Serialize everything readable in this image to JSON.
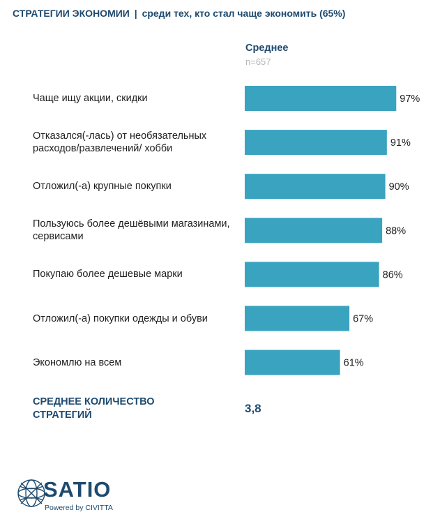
{
  "header": {
    "title": "СТРАТЕГИИ ЭКОНОМИИ",
    "separator": "|",
    "subtitle": "среди тех, кто стал чаще экономить (65%)"
  },
  "column": {
    "name": "Среднее",
    "n": "n=657"
  },
  "chart_data": {
    "type": "bar",
    "orientation": "horizontal",
    "categories": [
      "Чаще ищу акции, скидки",
      "Отказался(-лась) от необязательных расходов/развлечений/ хобби",
      "Отложил(-а) крупные покупки",
      "Пользуюсь более дешёвыми магазинами, сервисами",
      "Покупаю более дешевые марки",
      "Отложил(-а) покупки одежды и обуви",
      "Экономлю на всем"
    ],
    "values": [
      97,
      91,
      90,
      88,
      86,
      67,
      61
    ],
    "value_labels": [
      "97%",
      "91%",
      "90%",
      "88%",
      "86%",
      "67%",
      "61%"
    ],
    "series": [
      {
        "name": "Среднее",
        "values": [
          97,
          91,
          90,
          88,
          86,
          67,
          61
        ]
      }
    ],
    "xlim": [
      0,
      100
    ],
    "bar_color": "#3aa3bf",
    "grid": false
  },
  "summary": {
    "label_line1": "СРЕДНЕЕ КОЛИЧЕСТВО",
    "label_line2": "СТРАТЕГИЙ",
    "value": "3,8"
  },
  "logo": {
    "text": "SATIO",
    "subtext": "Powered by CIVITTA",
    "color": "#1e4a6e"
  }
}
